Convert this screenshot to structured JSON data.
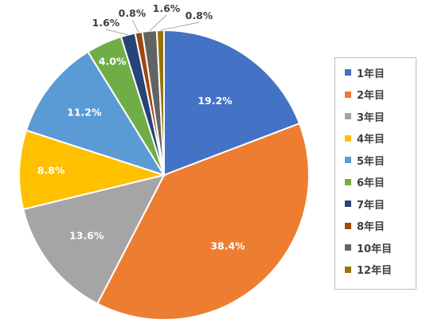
{
  "chart_data": {
    "type": "pie",
    "title": "",
    "categories": [
      "1年目",
      "2年目",
      "3年目",
      "4年目",
      "5年目",
      "6年目",
      "7年目",
      "8年目",
      "10年目",
      "12年目"
    ],
    "values": [
      19.2,
      38.4,
      13.6,
      8.8,
      11.2,
      4.0,
      1.6,
      0.8,
      1.6,
      0.8
    ],
    "labels": [
      "19.2%",
      "38.4%",
      "13.6%",
      "8.8%",
      "11.2%",
      "4.0%",
      "1.6%",
      "0.8%",
      "1.6%",
      "0.8%"
    ],
    "colors": [
      "#4472C4",
      "#ED7D31",
      "#A5A5A5",
      "#FFC000",
      "#5B9BD5",
      "#70AD47",
      "#264478",
      "#9E480E",
      "#636363",
      "#997300"
    ],
    "legend_position": "right",
    "start": "12 o'clock, clockwise"
  }
}
